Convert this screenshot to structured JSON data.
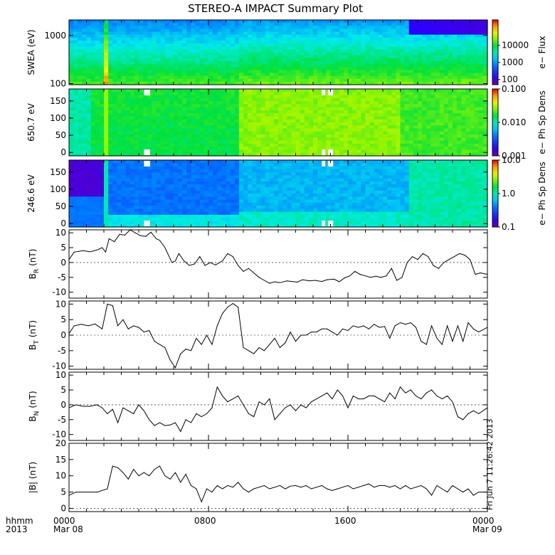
{
  "title": "STEREO-A IMPACT Summary Plot",
  "footer": {
    "row1_left": "hhmm",
    "row2_left": "2013",
    "xticks": [
      "0000",
      "0800",
      "1600",
      "0000"
    ],
    "xdates": [
      "Mar 08",
      "Mar 09"
    ],
    "timestamp": "Fri Jun  7 11:26:42 2013"
  },
  "colors": {
    "frame": "#000000",
    "trace": "#000000"
  },
  "chart_data": [
    {
      "type": "heatmap",
      "name": "swea",
      "ylabel": "SWEA (eV)",
      "yscale": "log",
      "ylim": [
        95,
        2100
      ],
      "yticks": [
        {
          "v": 1000,
          "label": "1000"
        },
        {
          "v": 100,
          "label": "100"
        }
      ],
      "colorbar": {
        "label": "e− Flux",
        "scale": "log",
        "range": [
          50,
          300000
        ],
        "ticks": [
          {
            "v": 10000,
            "label": "10000"
          },
          {
            "v": 1000,
            "label": "1000"
          },
          {
            "v": 100,
            "label": "100"
          }
        ]
      },
      "profile": {
        "logE": [
          2.0,
          2.25,
          2.5,
          2.75,
          3.0,
          3.2,
          3.32
        ],
        "level_a": [
          0.6,
          0.55,
          0.45,
          0.32,
          0.22,
          0.14,
          0.08
        ],
        "level_b": [
          0.52,
          0.5,
          0.45,
          0.38,
          0.28,
          0.2,
          0.15
        ]
      }
    },
    {
      "type": "heatmap",
      "name": "pad650",
      "ylabel": "650.7 eV",
      "yscale": "linear",
      "ylim": [
        -10,
        185
      ],
      "yticks": [
        {
          "v": 150,
          "label": "150"
        },
        {
          "v": 100,
          "label": "100"
        },
        {
          "v": 50,
          "label": "50"
        },
        {
          "v": 0,
          "label": "0"
        }
      ],
      "colorbar": {
        "label": "e− Ph Sp Dens",
        "scale": "log",
        "range": [
          0.001,
          0.1
        ],
        "ticks": [
          {
            "v": 0.1,
            "label": "0.100"
          },
          {
            "v": 0.01,
            "label": "0.010"
          },
          {
            "v": 0.001,
            "label": "0.001"
          }
        ]
      },
      "gaps_hours": [
        [
          4.3,
          4.65
        ],
        [
          14.5,
          14.7
        ],
        [
          14.85,
          15.15
        ]
      ]
    },
    {
      "type": "heatmap",
      "name": "pad246",
      "ylabel": "246.6 eV",
      "yscale": "linear",
      "ylim": [
        -10,
        185
      ],
      "yticks": [
        {
          "v": 150,
          "label": "150"
        },
        {
          "v": 100,
          "label": "100"
        },
        {
          "v": 50,
          "label": "50"
        },
        {
          "v": 0,
          "label": "0"
        }
      ],
      "colorbar": {
        "label": "e− Ph Sp Dens",
        "scale": "log",
        "range": [
          0.1,
          10
        ],
        "ticks": [
          {
            "v": 10,
            "label": "10.0"
          },
          {
            "v": 1,
            "label": "1.0"
          },
          {
            "v": 0.1,
            "label": "0.1"
          }
        ]
      },
      "gaps_hours": [
        [
          4.3,
          4.65
        ],
        [
          14.5,
          14.7
        ],
        [
          14.85,
          15.15
        ]
      ]
    },
    {
      "type": "line",
      "name": "br",
      "ylabel": "B",
      "ylabel_sub": "R",
      "ylabel_unit": "(nT)",
      "ylim": [
        -12,
        11
      ],
      "yticks": [
        {
          "v": 10,
          "label": "10"
        },
        {
          "v": 5,
          "label": "5"
        },
        {
          "v": 0,
          "label": "0"
        },
        {
          "v": -5,
          "label": "-5"
        },
        {
          "v": -10,
          "label": "-10"
        }
      ],
      "x": [
        0,
        0.3,
        0.8,
        1.2,
        1.6,
        1.9,
        2.1,
        2.3,
        2.6,
        2.9,
        3.2,
        3.5,
        3.8,
        4.1,
        4.4,
        4.7,
        5.0,
        5.2,
        5.5,
        5.9,
        6.1,
        6.3,
        6.6,
        6.9,
        7.2,
        7.5,
        7.8,
        8.1,
        8.4,
        8.8,
        9.1,
        9.4,
        9.7,
        10.0,
        10.3,
        10.6,
        10.9,
        11.2,
        11.5,
        11.8,
        12.1,
        12.5,
        12.8,
        13.1,
        13.4,
        13.8,
        14.1,
        14.5,
        14.8,
        15.2,
        15.5,
        15.8,
        16.1,
        16.4,
        16.7,
        17.0,
        17.3,
        17.6,
        17.9,
        18.2,
        18.5,
        18.8,
        19.1,
        19.4,
        19.7,
        20.0,
        20.3,
        20.6,
        20.9,
        21.2,
        21.5,
        21.8,
        22.1,
        22.4,
        22.7,
        23.0,
        23.3,
        23.6,
        24.0
      ],
      "y": [
        1,
        3.5,
        4,
        3.6,
        4.2,
        5,
        3.5,
        8,
        7,
        9.5,
        9.2,
        11,
        10,
        9,
        8.8,
        10.2,
        8,
        7.5,
        5,
        0,
        0.5,
        3,
        0.5,
        -1,
        -0.5,
        2,
        -1,
        0,
        -0.8,
        0.5,
        3,
        2,
        -1,
        -3,
        -2,
        -3.5,
        -5,
        -6,
        -7,
        -6.5,
        -6.8,
        -6.2,
        -6.4,
        -6.6,
        -5.8,
        -6.2,
        -6.0,
        -6.4,
        -5.8,
        -5.6,
        -6.5,
        -5.2,
        -4.5,
        -3,
        -4,
        -4.5,
        -5,
        -4.6,
        -5,
        -4.5,
        -2,
        -6,
        -5,
        0,
        2,
        1,
        3,
        2,
        -1,
        -2,
        0,
        1,
        2,
        3,
        2.5,
        1,
        -4,
        -3.5,
        -4
      ]
    },
    {
      "type": "line",
      "name": "bt",
      "ylabel": "B",
      "ylabel_sub": "T",
      "ylabel_unit": "(nT)",
      "ylim": [
        -11,
        11
      ],
      "yticks": [
        {
          "v": 10,
          "label": "10"
        },
        {
          "v": 5,
          "label": "5"
        },
        {
          "v": 0,
          "label": "0"
        },
        {
          "v": -5,
          "label": "-5"
        },
        {
          "v": -10,
          "label": "-10"
        }
      ],
      "x": [
        0,
        0.3,
        0.7,
        1.1,
        1.5,
        1.9,
        2.2,
        2.5,
        2.8,
        3.1,
        3.4,
        3.7,
        4.0,
        4.3,
        4.6,
        4.9,
        5.2,
        5.5,
        5.8,
        6.1,
        6.4,
        6.7,
        7.0,
        7.3,
        7.6,
        7.9,
        8.2,
        8.5,
        8.8,
        9.1,
        9.4,
        9.7,
        10.0,
        10.3,
        10.6,
        10.9,
        11.2,
        11.5,
        11.8,
        12.1,
        12.4,
        12.7,
        13.0,
        13.3,
        13.6,
        13.9,
        14.2,
        14.5,
        14.8,
        15.1,
        15.4,
        15.7,
        16.0,
        16.3,
        16.6,
        16.9,
        17.2,
        17.5,
        17.8,
        18.1,
        18.4,
        18.7,
        19.0,
        19.3,
        19.6,
        19.9,
        20.2,
        20.5,
        20.8,
        21.1,
        21.4,
        21.7,
        22.0,
        22.3,
        22.6,
        22.9,
        23.2,
        23.5,
        24.0
      ],
      "y": [
        0.5,
        3,
        3.5,
        3,
        3.6,
        2,
        10,
        9.5,
        3,
        5,
        2,
        3,
        2.5,
        1,
        1.5,
        -2,
        -3,
        -4,
        -8,
        -10.5,
        -6,
        -4.5,
        -5,
        -1,
        -3,
        0,
        -3,
        3,
        7,
        9,
        10.2,
        9,
        -4,
        -5,
        -6,
        -4,
        -5,
        -3,
        -1,
        -4,
        -2.5,
        1,
        -2,
        0,
        0,
        1,
        1,
        2,
        2,
        1,
        0,
        2,
        1.5,
        3,
        2.5,
        3,
        2,
        3.5,
        2.5,
        2.8,
        -1,
        3,
        4,
        3.5,
        4,
        2.5,
        -2,
        -3,
        3,
        -1,
        -3,
        3,
        -2,
        3,
        -2,
        4,
        2,
        1,
        2.5
      ]
    },
    {
      "type": "line",
      "name": "bn",
      "ylabel": "B",
      "ylabel_sub": "N",
      "ylabel_unit": "(nT)",
      "ylim": [
        -12,
        11
      ],
      "yticks": [
        {
          "v": 10,
          "label": "10"
        },
        {
          "v": 5,
          "label": "5"
        },
        {
          "v": 0,
          "label": "0"
        },
        {
          "v": -5,
          "label": "-5"
        },
        {
          "v": -10,
          "label": "-10"
        }
      ],
      "x": [
        0,
        0.4,
        0.8,
        1.2,
        1.6,
        1.9,
        2.2,
        2.5,
        2.8,
        3.1,
        3.4,
        3.7,
        4.0,
        4.3,
        4.6,
        4.9,
        5.2,
        5.5,
        5.8,
        6.1,
        6.4,
        6.7,
        7.0,
        7.3,
        7.6,
        7.9,
        8.2,
        8.5,
        8.8,
        9.1,
        9.4,
        9.7,
        10.0,
        10.3,
        10.6,
        10.9,
        11.2,
        11.5,
        11.8,
        12.1,
        12.4,
        12.7,
        13.0,
        13.3,
        13.6,
        13.9,
        14.2,
        14.5,
        14.8,
        15.1,
        15.4,
        15.7,
        16.0,
        16.3,
        16.6,
        16.9,
        17.2,
        17.5,
        17.8,
        18.1,
        18.4,
        18.7,
        19.0,
        19.3,
        19.6,
        19.9,
        20.2,
        20.5,
        20.8,
        21.1,
        21.4,
        21.7,
        22.0,
        22.3,
        22.6,
        22.9,
        23.2,
        23.5,
        24.0
      ],
      "y": [
        -1,
        0,
        -0.5,
        -0.5,
        0,
        -1,
        -3,
        -1.5,
        -6,
        -1,
        -2,
        -3,
        0,
        -2,
        -5,
        -7,
        -6,
        -7,
        -6.8,
        -6,
        -9,
        -5,
        -6,
        -3,
        -4,
        -3,
        -1,
        6,
        3,
        1,
        2,
        3,
        0,
        -3,
        -4,
        1,
        0,
        2,
        -5,
        -3,
        -1,
        0,
        -2,
        0,
        -1,
        1,
        2,
        3,
        4,
        2,
        5,
        3,
        -1,
        3,
        2,
        2,
        3,
        3,
        2,
        1,
        4,
        2,
        6,
        4,
        5,
        3,
        2,
        4,
        5,
        3,
        2,
        3,
        1,
        -4,
        -5,
        -3,
        -2,
        -3,
        -1
      ]
    },
    {
      "type": "line",
      "name": "bmag",
      "ylabel": "|B| (nT)",
      "ylim": [
        -1,
        20
      ],
      "yticks": [
        {
          "v": 20,
          "label": "20"
        },
        {
          "v": 15,
          "label": "15"
        },
        {
          "v": 10,
          "label": "10"
        },
        {
          "v": 5,
          "label": "5"
        },
        {
          "v": 0,
          "label": "0"
        }
      ],
      "x": [
        0,
        0.4,
        0.8,
        1.2,
        1.6,
        1.9,
        2.2,
        2.5,
        2.8,
        3.1,
        3.4,
        3.7,
        4.0,
        4.3,
        4.6,
        4.9,
        5.2,
        5.5,
        5.8,
        6.1,
        6.4,
        6.7,
        7.0,
        7.3,
        7.6,
        7.9,
        8.2,
        8.5,
        8.8,
        9.1,
        9.4,
        9.7,
        10.0,
        10.3,
        10.6,
        10.9,
        11.2,
        11.5,
        11.8,
        12.1,
        12.4,
        12.7,
        13.0,
        13.3,
        13.6,
        13.9,
        14.2,
        14.5,
        14.8,
        15.1,
        15.4,
        15.7,
        16.0,
        16.3,
        16.6,
        16.9,
        17.2,
        17.5,
        17.8,
        18.1,
        18.4,
        18.7,
        19.0,
        19.3,
        19.6,
        19.9,
        20.2,
        20.5,
        20.8,
        21.1,
        21.4,
        21.7,
        22.0,
        22.3,
        22.6,
        22.9,
        23.2,
        23.5,
        24.0
      ],
      "y": [
        4,
        5,
        5,
        5,
        5,
        5.5,
        6,
        13,
        12.5,
        11,
        9,
        12,
        10,
        11,
        10,
        12,
        13,
        10,
        9,
        11,
        8,
        10.5,
        7,
        6,
        2,
        6,
        5,
        7,
        6,
        7,
        6.5,
        8,
        6,
        5,
        6,
        6.5,
        7,
        6,
        6.5,
        7,
        6,
        6.8,
        7,
        6.5,
        7,
        6,
        6.5,
        7,
        6,
        5.5,
        6,
        6.5,
        7,
        6,
        6.5,
        7,
        7.5,
        6.5,
        7,
        7,
        6.5,
        7,
        6,
        7,
        6,
        6.5,
        7,
        6,
        4,
        7,
        6,
        5,
        7,
        6,
        5,
        6,
        4,
        5,
        5
      ]
    }
  ]
}
